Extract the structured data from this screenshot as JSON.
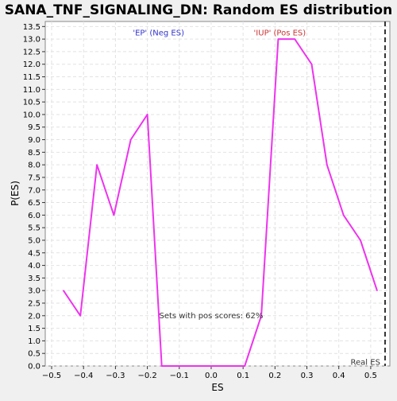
{
  "chart_data": {
    "type": "line",
    "title": "SANA_TNF_SIGNALING_DN: Random ES distribution",
    "xlabel": "ES",
    "ylabel": "P(ES)",
    "xlim": [
      -0.52,
      0.56
    ],
    "ylim": [
      0,
      13.7
    ],
    "x_ticks": [
      -0.5,
      -0.4,
      -0.3,
      -0.2,
      -0.1,
      0.0,
      0.1,
      0.2,
      0.3,
      0.4,
      0.5
    ],
    "x_tick_labels": [
      "−0.5",
      "−0.4",
      "−0.3",
      "−0.2",
      "−0.1",
      "0.0",
      "0.1",
      "0.2",
      "0.3",
      "0.4",
      "0.5"
    ],
    "y_ticks": [
      0.0,
      0.5,
      1.0,
      1.5,
      2.0,
      2.5,
      3.0,
      3.5,
      4.0,
      4.5,
      5.0,
      5.5,
      6.0,
      6.5,
      7.0,
      7.5,
      8.0,
      8.5,
      9.0,
      9.5,
      10.0,
      10.5,
      11.0,
      11.5,
      12.0,
      12.5,
      13.0,
      13.5
    ],
    "y_tick_labels": [
      "0.0",
      "0.5",
      "1.0",
      "1.5",
      "2.0",
      "2.5",
      "3.0",
      "3.5",
      "4.0",
      "4.5",
      "5.0",
      "5.5",
      "6.0",
      "6.5",
      "7.0",
      "7.5",
      "8.0",
      "8.5",
      "9.0",
      "9.5",
      "10.0",
      "10.5",
      "11.0",
      "11.5",
      "12.0",
      "12.5",
      "13.0",
      "13.5"
    ],
    "grid": true,
    "series": [
      {
        "color": "#ee33ee",
        "x": [
          -0.463,
          -0.41,
          -0.358,
          -0.305,
          -0.252,
          -0.2,
          -0.155,
          -0.05,
          0.05,
          0.105,
          0.157,
          0.21,
          0.262,
          0.315,
          0.363,
          0.415,
          0.468,
          0.52
        ],
        "y": [
          3,
          2,
          8,
          6,
          9,
          10,
          0,
          0,
          0,
          0,
          2,
          13,
          13,
          12,
          8,
          6,
          5,
          3
        ]
      }
    ],
    "annotations": [
      {
        "text": "'EP' (Neg ES)",
        "color": "#3333cc",
        "x": -0.165,
        "y": 13.15
      },
      {
        "text": "'IUP' (Pos ES)",
        "color": "#cc3333",
        "x": 0.215,
        "y": 13.15
      },
      {
        "text": "Sets with pos scores: 62%",
        "color": "#333333",
        "x": 0.0,
        "y": 1.9
      },
      {
        "text": "Real ES",
        "color": "#333333",
        "x": 0.53,
        "y": 0.05
      }
    ],
    "real_es": 0.545
  }
}
